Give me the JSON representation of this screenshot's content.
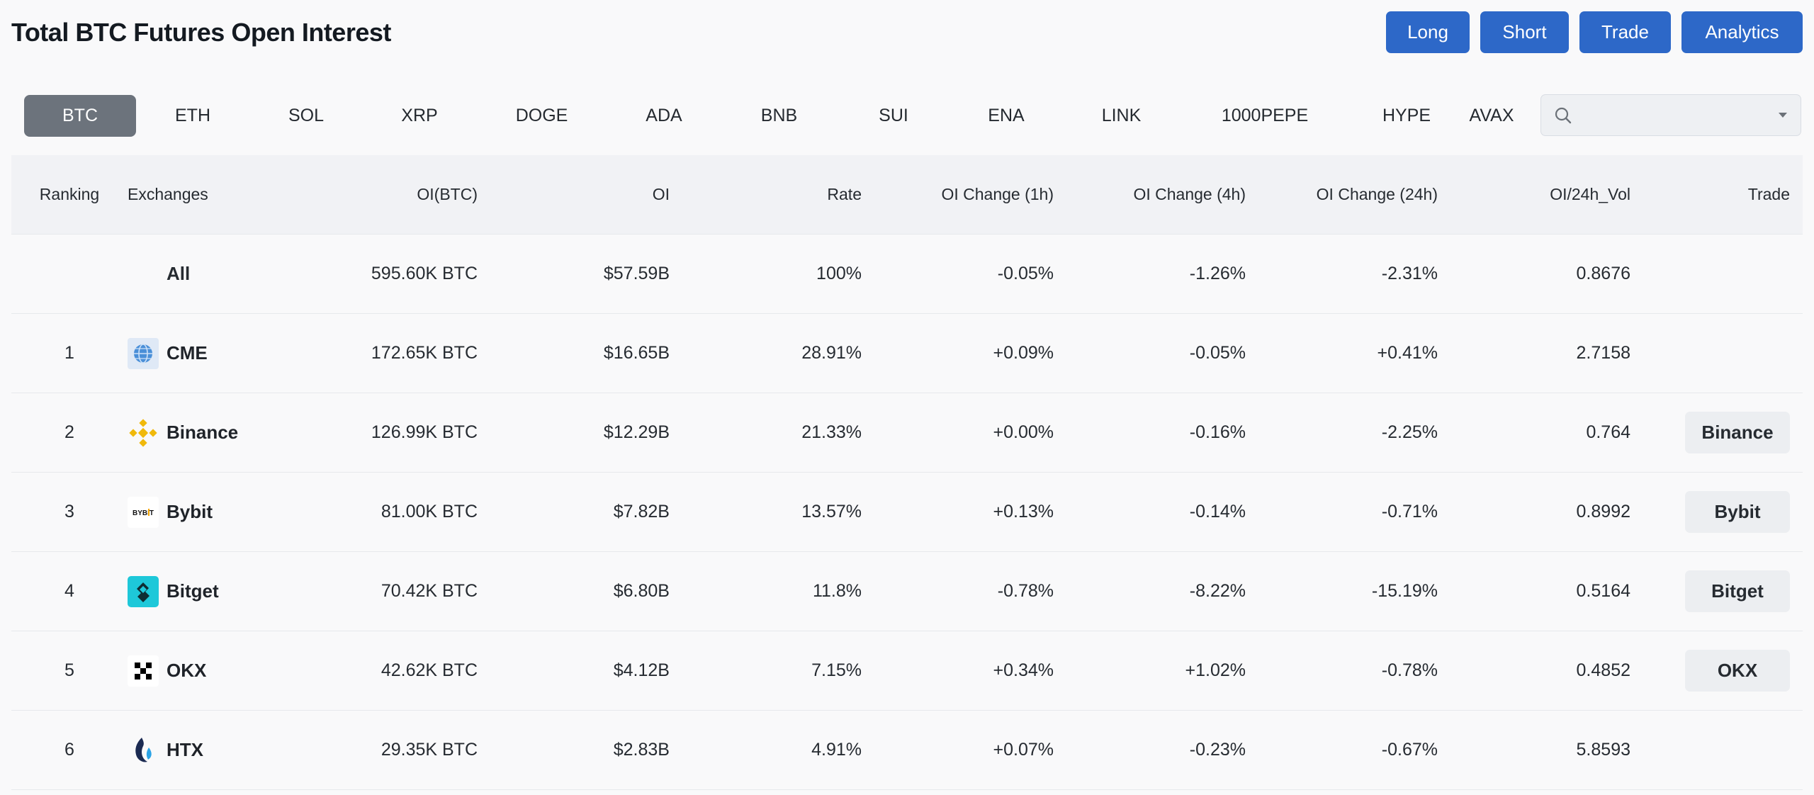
{
  "page": {
    "title": "Total BTC Futures Open Interest"
  },
  "actions": {
    "long": "Long",
    "short": "Short",
    "trade": "Trade",
    "analytics": "Analytics"
  },
  "coins": [
    "BTC",
    "ETH",
    "SOL",
    "XRP",
    "DOGE",
    "ADA",
    "BNB",
    "SUI",
    "ENA",
    "LINK",
    "1000PEPE",
    "HYPE",
    "AVAX"
  ],
  "active_coin": "BTC",
  "search": {
    "value": "",
    "placeholder": ""
  },
  "table": {
    "headers": {
      "ranking": "Ranking",
      "exchanges": "Exchanges",
      "oi_btc": "OI(BTC)",
      "oi": "OI",
      "rate": "Rate",
      "oi_change_1h": "OI Change (1h)",
      "oi_change_4h": "OI Change (4h)",
      "oi_change_24h": "OI Change (24h)",
      "oi_24h_vol": "OI/24h_Vol",
      "trade": "Trade"
    },
    "all_row": {
      "name": "All",
      "oi_btc": "595.60K BTC",
      "oi": "$57.59B",
      "rate": "100%",
      "ch1h": "-0.05%",
      "ch4h": "-1.26%",
      "ch24h": "-2.31%",
      "vol_ratio": "0.8676"
    },
    "rows": [
      {
        "rank": "1",
        "name": "CME",
        "logo": "cme-logo-icon",
        "oi_btc": "172.65K BTC",
        "oi": "$16.65B",
        "rate": "28.91%",
        "ch1h": "+0.09%",
        "ch4h": "-0.05%",
        "ch24h": "+0.41%",
        "vol_ratio": "2.7158",
        "trade": ""
      },
      {
        "rank": "2",
        "name": "Binance",
        "logo": "binance-logo-icon",
        "oi_btc": "126.99K BTC",
        "oi": "$12.29B",
        "rate": "21.33%",
        "ch1h": "+0.00%",
        "ch4h": "-0.16%",
        "ch24h": "-2.25%",
        "vol_ratio": "0.764",
        "trade": "Binance"
      },
      {
        "rank": "3",
        "name": "Bybit",
        "logo": "bybit-logo-icon",
        "logo_text": "BYBIT",
        "oi_btc": "81.00K BTC",
        "oi": "$7.82B",
        "rate": "13.57%",
        "ch1h": "+0.13%",
        "ch4h": "-0.14%",
        "ch24h": "-0.71%",
        "vol_ratio": "0.8992",
        "trade": "Bybit"
      },
      {
        "rank": "4",
        "name": "Bitget",
        "logo": "bitget-logo-icon",
        "oi_btc": "70.42K BTC",
        "oi": "$6.80B",
        "rate": "11.8%",
        "ch1h": "-0.78%",
        "ch4h": "-8.22%",
        "ch24h": "-15.19%",
        "vol_ratio": "0.5164",
        "trade": "Bitget"
      },
      {
        "rank": "5",
        "name": "OKX",
        "logo": "okx-logo-icon",
        "oi_btc": "42.62K BTC",
        "oi": "$4.12B",
        "rate": "7.15%",
        "ch1h": "+0.34%",
        "ch4h": "+1.02%",
        "ch24h": "-0.78%",
        "vol_ratio": "0.4852",
        "trade": "OKX"
      },
      {
        "rank": "6",
        "name": "HTX",
        "logo": "htx-logo-icon",
        "oi_btc": "29.35K BTC",
        "oi": "$2.83B",
        "rate": "4.91%",
        "ch1h": "+0.07%",
        "ch4h": "-0.23%",
        "ch24h": "-0.67%",
        "vol_ratio": "5.8593",
        "trade": ""
      }
    ]
  },
  "colors": {
    "accent": "#2d68c8",
    "positive": "#3f9b6f",
    "negative": "#d24a4e",
    "active_tab": "#6c737c"
  }
}
